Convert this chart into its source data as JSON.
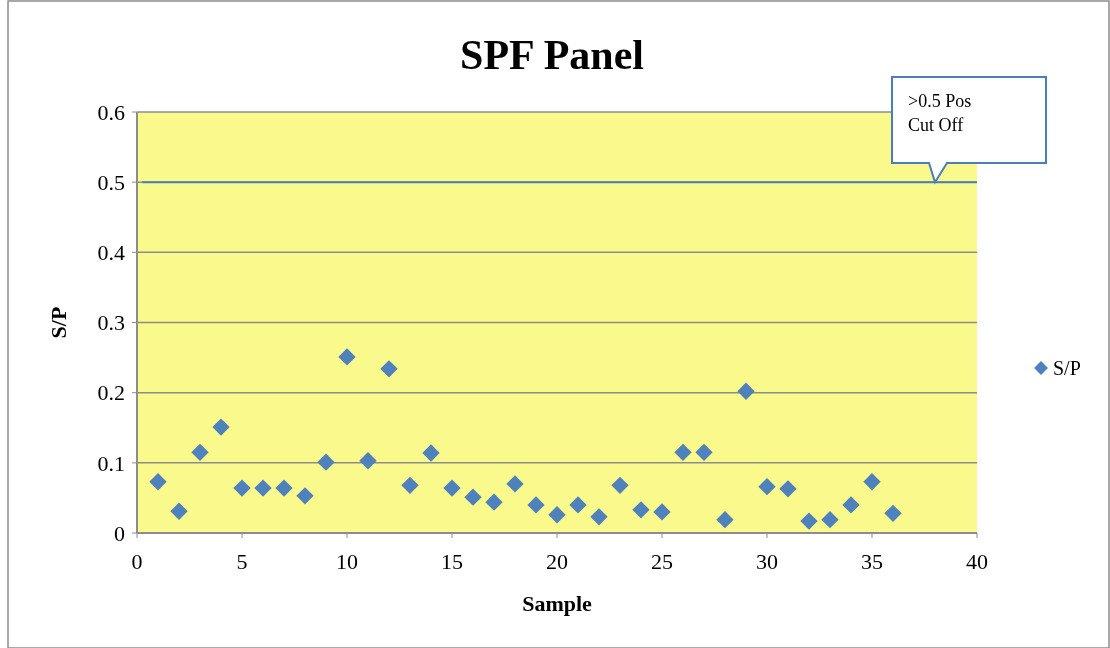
{
  "chart_data": {
    "type": "scatter",
    "title": "SPF Panel",
    "xlabel": "Sample",
    "ylabel": "S/P",
    "x": [
      1,
      2,
      3,
      4,
      5,
      6,
      7,
      8,
      9,
      10,
      11,
      12,
      13,
      14,
      15,
      16,
      17,
      18,
      19,
      20,
      21,
      22,
      23,
      24,
      25,
      26,
      27,
      28,
      29,
      30,
      31,
      32,
      33,
      34,
      35,
      36
    ],
    "series": [
      {
        "name": "S/P",
        "color": "#4f81bd",
        "values": [
          0.073,
          0.031,
          0.115,
          0.151,
          0.064,
          0.064,
          0.064,
          0.053,
          0.101,
          0.251,
          0.103,
          0.234,
          0.068,
          0.114,
          0.064,
          0.051,
          0.044,
          0.07,
          0.04,
          0.026,
          0.04,
          0.023,
          0.068,
          0.033,
          0.03,
          0.115,
          0.115,
          0.019,
          0.202,
          0.066,
          0.063,
          0.017,
          0.019,
          0.04,
          0.073,
          0.028
        ]
      }
    ],
    "xlim": [
      0,
      40
    ],
    "xticks": [
      0,
      5,
      10,
      15,
      20,
      25,
      30,
      35,
      40
    ],
    "ylim": [
      0,
      0.6
    ],
    "yticks": [
      0,
      0.1,
      0.2,
      0.3,
      0.4,
      0.5,
      0.6
    ],
    "ref_lines": [
      {
        "axis": "y",
        "value": 0.5,
        "label": ">0.5 Pos Cut Off",
        "color": "#4a7ebb"
      }
    ],
    "grid": "y",
    "legend": "right",
    "marker": "diamond"
  }
}
